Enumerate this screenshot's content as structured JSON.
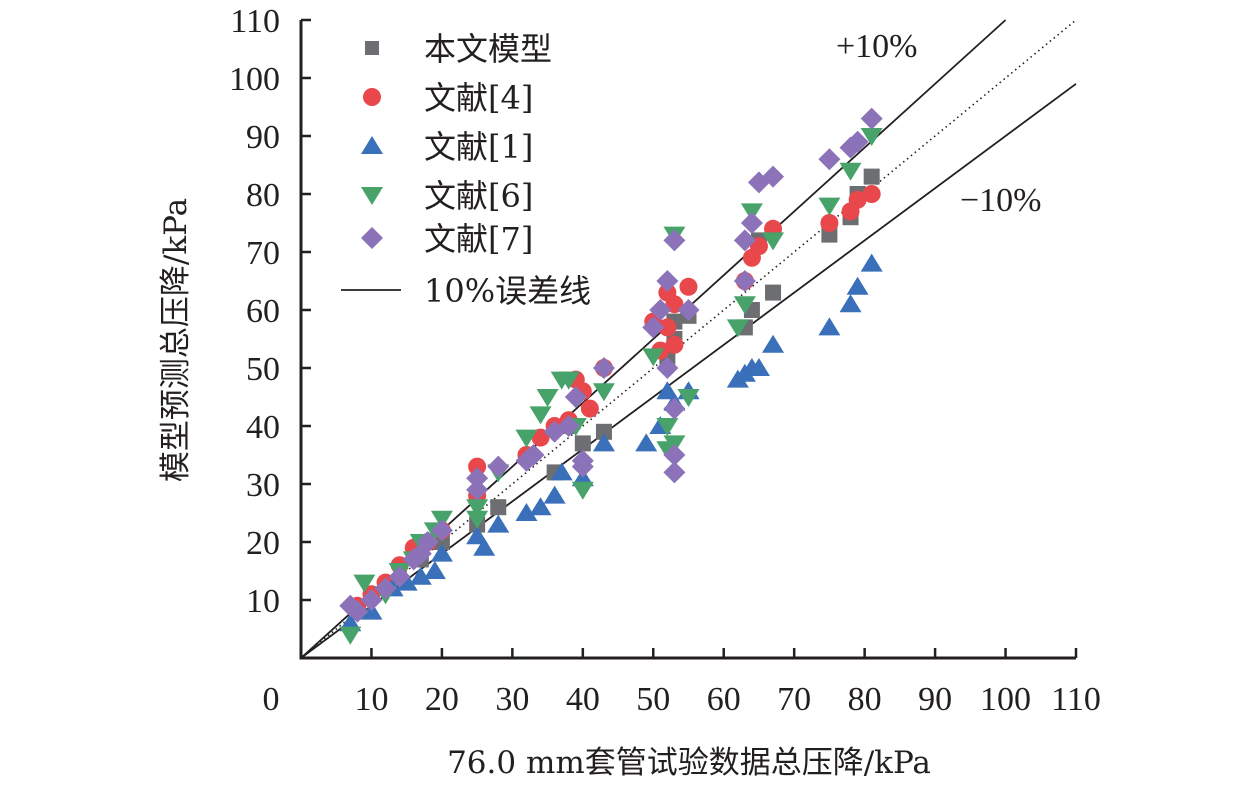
{
  "chart_data": {
    "type": "scatter",
    "title": "",
    "xlabel": "76.0 mm套管试验数据总压降/kPa",
    "ylabel": "模型预测总压降/kPa",
    "xlim": [
      0,
      110
    ],
    "ylim": [
      0,
      110
    ],
    "x_ticks": [
      0,
      10,
      20,
      30,
      40,
      50,
      60,
      70,
      80,
      90,
      100,
      110
    ],
    "x_tick_labels": [
      "0",
      "10",
      "20",
      "30",
      "40",
      "50",
      "60",
      "70",
      "80",
      "90",
      "100",
      "110"
    ],
    "y_ticks": [
      10,
      20,
      30,
      40,
      50,
      60,
      70,
      80,
      90,
      100,
      110
    ],
    "y_tick_labels": [
      "10",
      "20",
      "30",
      "40",
      "50",
      "60",
      "70",
      "80",
      "90",
      "100",
      "110"
    ],
    "grid": false,
    "legend_position": "top-left",
    "annotations": [
      {
        "text": "+10%"
      },
      {
        "text": "−10%"
      }
    ],
    "reference_lines": [
      {
        "name": "10%误差线",
        "type": "plus",
        "slope": 1.1,
        "style": "solid"
      },
      {
        "name": "10%误差线",
        "type": "minus",
        "slope": 0.9,
        "style": "solid"
      },
      {
        "name": "",
        "type": "identity",
        "slope": 1.0,
        "style": "dotted"
      }
    ],
    "line_legend_label": "10%误差线",
    "series": [
      {
        "name": "本文模型",
        "marker": "square",
        "color": "#6d6e71",
        "points": [
          [
            17,
            17
          ],
          [
            20,
            20
          ],
          [
            25,
            23
          ],
          [
            28,
            26
          ],
          [
            36,
            32
          ],
          [
            38,
            40
          ],
          [
            40,
            37
          ],
          [
            43,
            39
          ],
          [
            52,
            52
          ],
          [
            53,
            55
          ],
          [
            53,
            58
          ],
          [
            55,
            59
          ],
          [
            63,
            57
          ],
          [
            64,
            60
          ],
          [
            65,
            72
          ],
          [
            67,
            63
          ],
          [
            75,
            73
          ],
          [
            78,
            76
          ],
          [
            79,
            80
          ],
          [
            81,
            83
          ]
        ]
      },
      {
        "name": "文献[4]",
        "marker": "circle",
        "color": "#e8474c",
        "points": [
          [
            8,
            9
          ],
          [
            10,
            11
          ],
          [
            12,
            13
          ],
          [
            14,
            16
          ],
          [
            16,
            19
          ],
          [
            18,
            20
          ],
          [
            20,
            22
          ],
          [
            25,
            33
          ],
          [
            25,
            28
          ],
          [
            32,
            35
          ],
          [
            34,
            38
          ],
          [
            36,
            40
          ],
          [
            38,
            41
          ],
          [
            39,
            48
          ],
          [
            40,
            46
          ],
          [
            41,
            43
          ],
          [
            43,
            50
          ],
          [
            50,
            58
          ],
          [
            51,
            53
          ],
          [
            52,
            63
          ],
          [
            52,
            57
          ],
          [
            53,
            61
          ],
          [
            53,
            54
          ],
          [
            55,
            64
          ],
          [
            63,
            65
          ],
          [
            64,
            69
          ],
          [
            65,
            71
          ],
          [
            67,
            74
          ],
          [
            75,
            75
          ],
          [
            78,
            77
          ],
          [
            79,
            79
          ],
          [
            81,
            80
          ]
        ]
      },
      {
        "name": "文献[1]",
        "marker": "triangle-up",
        "color": "#3a6fba",
        "points": [
          [
            7,
            6
          ],
          [
            10,
            8
          ],
          [
            13,
            12
          ],
          [
            15,
            13
          ],
          [
            17,
            14
          ],
          [
            19,
            15
          ],
          [
            20,
            18
          ],
          [
            25,
            21
          ],
          [
            26,
            19
          ],
          [
            28,
            23
          ],
          [
            32,
            25
          ],
          [
            34,
            26
          ],
          [
            36,
            28
          ],
          [
            37,
            32
          ],
          [
            40,
            31
          ],
          [
            43,
            37
          ],
          [
            49,
            37
          ],
          [
            51,
            40
          ],
          [
            52,
            46
          ],
          [
            53,
            44
          ],
          [
            55,
            46
          ],
          [
            62,
            48
          ],
          [
            63,
            49
          ],
          [
            64,
            50
          ],
          [
            65,
            50
          ],
          [
            67,
            54
          ],
          [
            75,
            57
          ],
          [
            78,
            61
          ],
          [
            79,
            64
          ],
          [
            81,
            68
          ]
        ]
      },
      {
        "name": "文献[6]",
        "marker": "triangle-down",
        "color": "#47a36a",
        "points": [
          [
            7,
            4
          ],
          [
            9,
            13
          ],
          [
            12,
            11
          ],
          [
            14,
            15
          ],
          [
            16,
            17
          ],
          [
            17,
            20
          ],
          [
            19,
            22
          ],
          [
            20,
            24
          ],
          [
            25,
            24
          ],
          [
            25,
            26
          ],
          [
            28,
            32
          ],
          [
            32,
            38
          ],
          [
            34,
            42
          ],
          [
            35,
            45
          ],
          [
            37,
            48
          ],
          [
            38,
            48
          ],
          [
            39,
            40
          ],
          [
            40,
            29
          ],
          [
            43,
            46
          ],
          [
            50,
            52
          ],
          [
            52,
            40
          ],
          [
            52,
            36
          ],
          [
            53,
            73
          ],
          [
            53,
            37
          ],
          [
            55,
            45
          ],
          [
            62,
            57
          ],
          [
            63,
            61
          ],
          [
            64,
            77
          ],
          [
            67,
            72
          ],
          [
            75,
            78
          ],
          [
            78,
            84
          ],
          [
            81,
            90
          ]
        ]
      },
      {
        "name": "文献[7]",
        "marker": "diamond",
        "color": "#8c72b8",
        "points": [
          [
            7,
            9
          ],
          [
            8,
            8
          ],
          [
            10,
            10
          ],
          [
            12,
            12
          ],
          [
            14,
            14
          ],
          [
            16,
            17
          ],
          [
            17,
            18
          ],
          [
            18,
            20
          ],
          [
            20,
            22
          ],
          [
            25,
            31
          ],
          [
            25,
            29
          ],
          [
            28,
            33
          ],
          [
            32,
            34
          ],
          [
            33,
            35
          ],
          [
            36,
            39
          ],
          [
            38,
            40
          ],
          [
            39,
            45
          ],
          [
            40,
            34
          ],
          [
            40,
            33
          ],
          [
            43,
            50
          ],
          [
            50,
            57
          ],
          [
            51,
            60
          ],
          [
            52,
            65
          ],
          [
            52,
            50
          ],
          [
            53,
            72
          ],
          [
            53,
            43
          ],
          [
            53,
            35
          ],
          [
            53,
            32
          ],
          [
            55,
            60
          ],
          [
            63,
            65
          ],
          [
            63,
            72
          ],
          [
            64,
            75
          ],
          [
            65,
            82
          ],
          [
            67,
            83
          ],
          [
            75,
            86
          ],
          [
            78,
            88
          ],
          [
            79,
            89
          ],
          [
            81,
            93
          ]
        ]
      }
    ]
  }
}
